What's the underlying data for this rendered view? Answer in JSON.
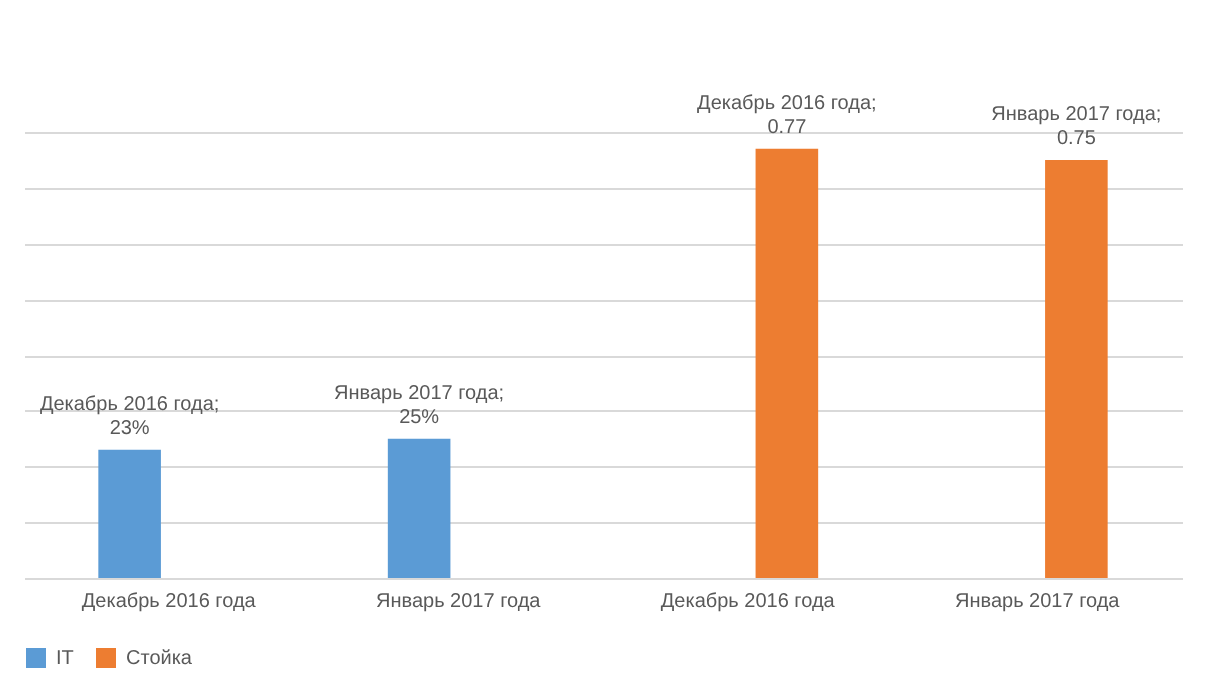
{
  "chart_data": {
    "type": "bar",
    "categories": [
      "Декабрь 2016 года",
      "Январь 2017 года",
      "Декабрь 2016 года",
      "Январь 2017 года"
    ],
    "series": [
      {
        "name": "IT",
        "color": "#5b9bd5",
        "values": [
          0.23,
          0.25,
          null,
          null
        ],
        "value_labels": [
          "Декабрь 2016 года;\n23%",
          "Январь 2017 года;\n25%",
          null,
          null
        ]
      },
      {
        "name": "Стойка",
        "color": "#ed7d31",
        "values": [
          null,
          null,
          0.77,
          0.75
        ],
        "value_labels": [
          null,
          null,
          "Декабрь 2016 года;\n0.77",
          "Январь 2017 года;\n0.75"
        ]
      }
    ],
    "tick_labels": "x",
    "grid": "y",
    "legend": "bottom"
  }
}
